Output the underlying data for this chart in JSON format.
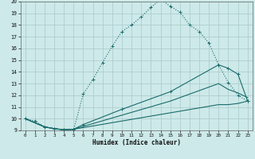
{
  "xlabel": "Humidex (Indice chaleur)",
  "bg_color": "#cde9e9",
  "grid_color": "#a8c8c8",
  "line_color": "#1a6b6b",
  "xlim": [
    -0.5,
    23.5
  ],
  "ylim": [
    9,
    20
  ],
  "xticks": [
    0,
    1,
    2,
    3,
    4,
    5,
    6,
    7,
    8,
    9,
    10,
    11,
    12,
    13,
    14,
    15,
    16,
    17,
    18,
    19,
    20,
    21,
    22,
    23
  ],
  "yticks": [
    9,
    10,
    11,
    12,
    13,
    14,
    15,
    16,
    17,
    18,
    19,
    20
  ],
  "curve_main_x": [
    0,
    1,
    2,
    3,
    4,
    5,
    6,
    7,
    8,
    9,
    10,
    11,
    12,
    13,
    14,
    15,
    16,
    17,
    18,
    19,
    20,
    21,
    22,
    23
  ],
  "curve_main_y": [
    10.0,
    9.8,
    9.3,
    9.15,
    9.05,
    9.05,
    12.1,
    13.35,
    14.8,
    16.2,
    17.45,
    18.0,
    18.7,
    19.5,
    20.2,
    19.6,
    19.1,
    18.0,
    17.45,
    16.45,
    14.6,
    13.1,
    12.0,
    11.5
  ],
  "curve2_x": [
    0,
    2,
    3,
    4,
    5,
    6,
    10,
    15,
    20,
    21,
    22,
    23
  ],
  "curve2_y": [
    10.0,
    9.3,
    9.15,
    9.05,
    9.1,
    9.5,
    10.8,
    12.3,
    14.6,
    14.3,
    13.8,
    11.5
  ],
  "curve3_x": [
    0,
    2,
    3,
    4,
    5,
    10,
    15,
    20,
    21,
    22,
    23
  ],
  "curve3_y": [
    10.0,
    9.3,
    9.15,
    9.05,
    9.1,
    10.3,
    11.5,
    13.0,
    12.5,
    12.2,
    11.8
  ],
  "curve4_x": [
    0,
    2,
    3,
    4,
    5,
    10,
    15,
    20,
    21,
    22,
    23
  ],
  "curve4_y": [
    10.0,
    9.3,
    9.15,
    9.05,
    9.1,
    9.8,
    10.5,
    11.2,
    11.2,
    11.3,
    11.5
  ]
}
